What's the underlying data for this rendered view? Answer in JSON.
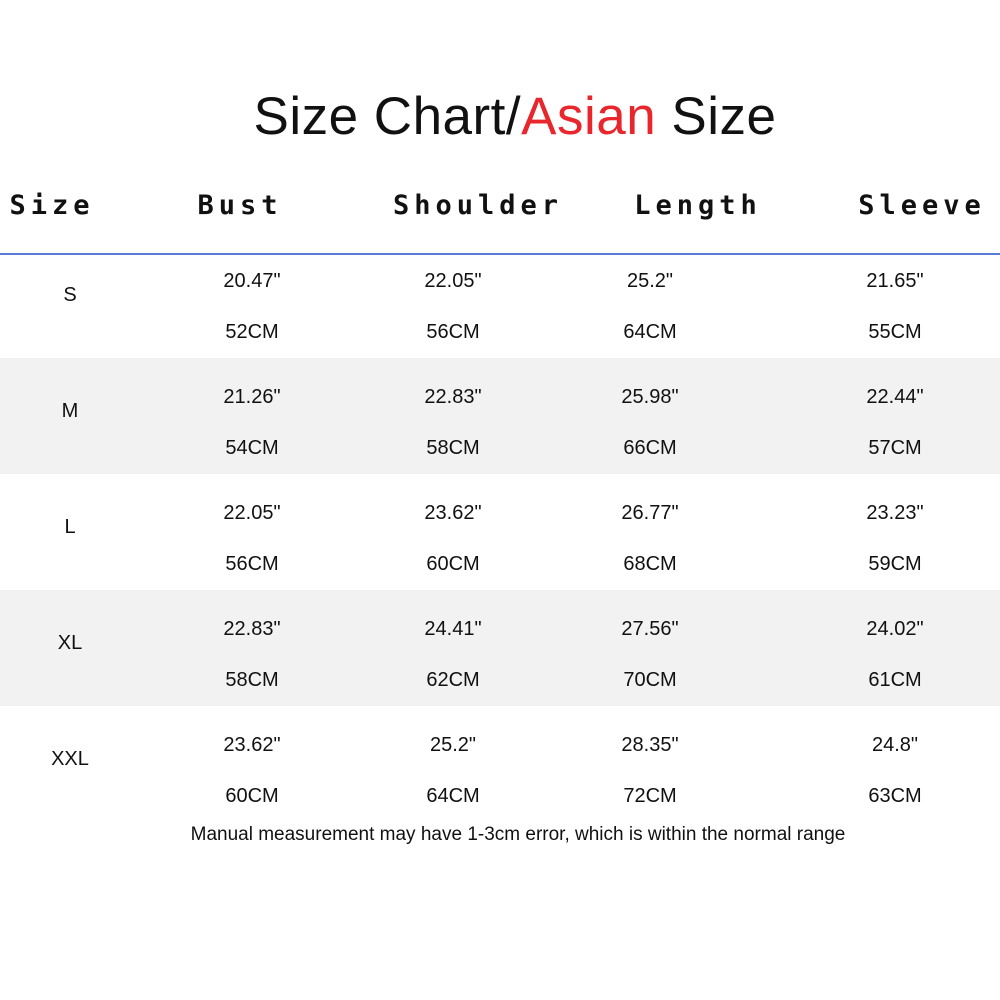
{
  "title": {
    "part1": "Size Chart/",
    "accent": "Asian",
    "part2": " Size",
    "accent_color": "#e8262b"
  },
  "header_rule_color": "#5b7bd5",
  "row_alt_color": "#f2f2f2",
  "columns": [
    "Size",
    "Bust",
    "Shoulder",
    "Length",
    "Sleeve"
  ],
  "rows": [
    {
      "size": "S",
      "values": [
        [
          "20.47\"",
          "52CM"
        ],
        [
          "22.05\"",
          "56CM"
        ],
        [
          "25.2\"",
          "64CM"
        ],
        [
          "21.65\"",
          "55CM"
        ]
      ]
    },
    {
      "size": "M",
      "values": [
        [
          "21.26\"",
          "54CM"
        ],
        [
          "22.83\"",
          "58CM"
        ],
        [
          "25.98\"",
          "66CM"
        ],
        [
          "22.44\"",
          "57CM"
        ]
      ]
    },
    {
      "size": "L",
      "values": [
        [
          "22.05\"",
          "56CM"
        ],
        [
          "23.62\"",
          "60CM"
        ],
        [
          "26.77\"",
          "68CM"
        ],
        [
          "23.23\"",
          "59CM"
        ]
      ]
    },
    {
      "size": "XL",
      "values": [
        [
          "22.83\"",
          "58CM"
        ],
        [
          "24.41\"",
          "62CM"
        ],
        [
          "27.56\"",
          "70CM"
        ],
        [
          "24.02\"",
          "61CM"
        ]
      ]
    },
    {
      "size": "XXL",
      "values": [
        [
          "23.62\"",
          "60CM"
        ],
        [
          "25.2\"",
          "64CM"
        ],
        [
          "28.35\"",
          "72CM"
        ],
        [
          "24.8\"",
          "63CM"
        ]
      ]
    }
  ],
  "note": "Manual measurement may have 1-3cm error, which is within the normal range"
}
